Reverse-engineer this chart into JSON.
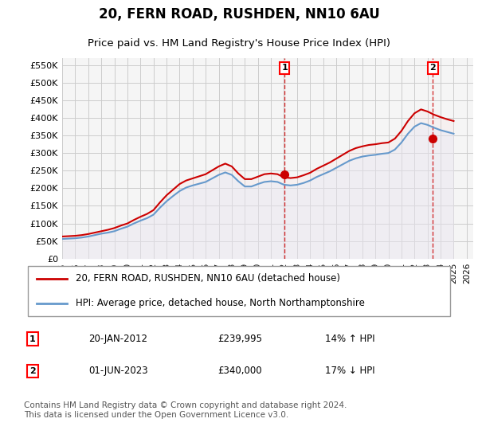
{
  "title": "20, FERN ROAD, RUSHDEN, NN10 6AU",
  "subtitle": "Price paid vs. HM Land Registry's House Price Index (HPI)",
  "ylabel_ticks": [
    "£0",
    "£50K",
    "£100K",
    "£150K",
    "£200K",
    "£250K",
    "£300K",
    "£350K",
    "£400K",
    "£450K",
    "£500K",
    "£550K"
  ],
  "ylim": [
    0,
    570000
  ],
  "xlim_start": 1995.0,
  "xlim_end": 2026.5,
  "transaction1_date": 2012.055,
  "transaction1_price": 239995,
  "transaction1_label": "1",
  "transaction2_date": 2023.415,
  "transaction2_price": 340000,
  "transaction2_label": "2",
  "line1_color": "#cc0000",
  "line2_color": "#6699cc",
  "fill_color": "#ddeeff",
  "grid_color": "#cccccc",
  "bg_color": "#f5f5f5",
  "legend_line1": "20, FERN ROAD, RUSHDEN, NN10 6AU (detached house)",
  "legend_line2": "HPI: Average price, detached house, North Northamptonshire",
  "annotation1_date": "20-JAN-2012",
  "annotation1_price": "£239,995",
  "annotation1_hpi": "14% ↑ HPI",
  "annotation2_date": "01-JUN-2023",
  "annotation2_price": "£340,000",
  "annotation2_hpi": "17% ↓ HPI",
  "footer": "Contains HM Land Registry data © Crown copyright and database right 2024.\nThis data is licensed under the Open Government Licence v3.0.",
  "hpi_years": [
    1995,
    1995.5,
    1996,
    1996.5,
    1997,
    1997.5,
    1998,
    1998.5,
    1999,
    1999.5,
    2000,
    2000.5,
    2001,
    2001.5,
    2002,
    2002.5,
    2003,
    2003.5,
    2004,
    2004.5,
    2005,
    2005.5,
    2006,
    2006.5,
    2007,
    2007.5,
    2008,
    2008.5,
    2009,
    2009.5,
    2010,
    2010.5,
    2011,
    2011.5,
    2012,
    2012.5,
    2013,
    2013.5,
    2014,
    2014.5,
    2015,
    2015.5,
    2016,
    2016.5,
    2017,
    2017.5,
    2018,
    2018.5,
    2019,
    2019.5,
    2020,
    2020.5,
    2021,
    2021.5,
    2022,
    2022.5,
    2023,
    2023.5,
    2024,
    2024.5,
    2025
  ],
  "hpi_values": [
    56000,
    57000,
    58000,
    60000,
    63000,
    67000,
    71000,
    74000,
    78000,
    85000,
    91000,
    100000,
    108000,
    115000,
    125000,
    145000,
    163000,
    178000,
    192000,
    202000,
    208000,
    213000,
    218000,
    228000,
    238000,
    245000,
    238000,
    220000,
    205000,
    205000,
    212000,
    218000,
    220000,
    218000,
    210000,
    208000,
    210000,
    215000,
    222000,
    232000,
    240000,
    248000,
    258000,
    268000,
    278000,
    285000,
    290000,
    293000,
    295000,
    298000,
    300000,
    310000,
    330000,
    355000,
    375000,
    385000,
    380000,
    372000,
    365000,
    360000,
    355000
  ],
  "price_years": [
    1995,
    1995.5,
    1996,
    1996.5,
    1997,
    1997.5,
    1998,
    1998.5,
    1999,
    1999.5,
    2000,
    2000.5,
    2001,
    2001.5,
    2002,
    2002.5,
    2003,
    2003.5,
    2004,
    2004.5,
    2005,
    2005.5,
    2006,
    2006.5,
    2007,
    2007.5,
    2008,
    2008.5,
    2009,
    2009.5,
    2010,
    2010.5,
    2011,
    2011.5,
    2012,
    2012.5,
    2013,
    2013.5,
    2014,
    2014.5,
    2015,
    2015.5,
    2016,
    2016.5,
    2017,
    2017.5,
    2018,
    2018.5,
    2019,
    2019.5,
    2020,
    2020.5,
    2021,
    2021.5,
    2022,
    2022.5,
    2023,
    2023.5,
    2024,
    2024.5,
    2025
  ],
  "price_values": [
    63000,
    64000,
    65000,
    67000,
    70000,
    74000,
    78000,
    82000,
    87000,
    94000,
    100000,
    110000,
    119000,
    127000,
    138000,
    160000,
    180000,
    196000,
    212000,
    222000,
    228000,
    234000,
    240000,
    251000,
    262000,
    270000,
    262000,
    242000,
    226000,
    226000,
    233000,
    240000,
    242000,
    240000,
    231000,
    229000,
    231000,
    237000,
    244000,
    255000,
    264000,
    273000,
    284000,
    295000,
    306000,
    314000,
    319000,
    323000,
    325000,
    328000,
    330000,
    341000,
    363000,
    391000,
    413000,
    424000,
    418000,
    409000,
    402000,
    396000,
    391000
  ]
}
